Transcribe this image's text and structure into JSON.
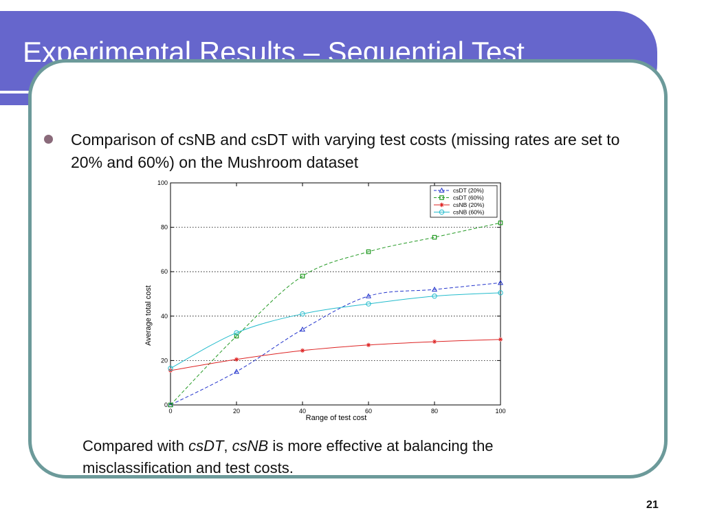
{
  "slide": {
    "title": "Experimental Results – Sequential Test",
    "bullet": "Comparison of csNB and csDT with varying test costs (missing rates are set to 20% and 60%) on the Mushroom dataset",
    "caption": {
      "part1": "Compared with ",
      "em1": "csDT",
      "sep": ", ",
      "em2": "csNB",
      "part2": " is more effective at balancing the misclassification and test costs."
    },
    "page_number": "21"
  },
  "colors": {
    "title_bar": "#6666cc",
    "frame_border": "#6c9a9a",
    "bullet": "#8a6a7a"
  },
  "chart_data": {
    "type": "line",
    "xlabel": "Range of test cost",
    "ylabel": "Average total cost",
    "xlim": [
      0,
      100
    ],
    "ylim": [
      0,
      100
    ],
    "xticks": [
      0,
      20,
      40,
      60,
      80,
      100
    ],
    "yticks": [
      0,
      20,
      40,
      60,
      80,
      100
    ],
    "grid": "dotted horizontal",
    "legend_position": "top-right",
    "x": [
      0,
      20,
      40,
      60,
      80,
      100
    ],
    "series": [
      {
        "name": "csDT (20%)",
        "values": [
          0,
          15,
          34,
          49,
          52,
          55
        ],
        "color": "#2233cc",
        "dash": "dashed",
        "marker": "triangle"
      },
      {
        "name": "csDT (60%)",
        "values": [
          0,
          31,
          58,
          69,
          75.5,
          82
        ],
        "color": "#229922",
        "dash": "dashed",
        "marker": "square"
      },
      {
        "name": "csNB (20%)",
        "values": [
          15.5,
          20.5,
          24.5,
          27,
          28.5,
          29.5
        ],
        "color": "#dd2222",
        "dash": "solid",
        "marker": "star"
      },
      {
        "name": "csNB (60%)",
        "values": [
          16.5,
          32.5,
          41,
          45.5,
          49,
          50.5
        ],
        "color": "#22bbcc",
        "dash": "solid",
        "marker": "circle"
      }
    ]
  }
}
